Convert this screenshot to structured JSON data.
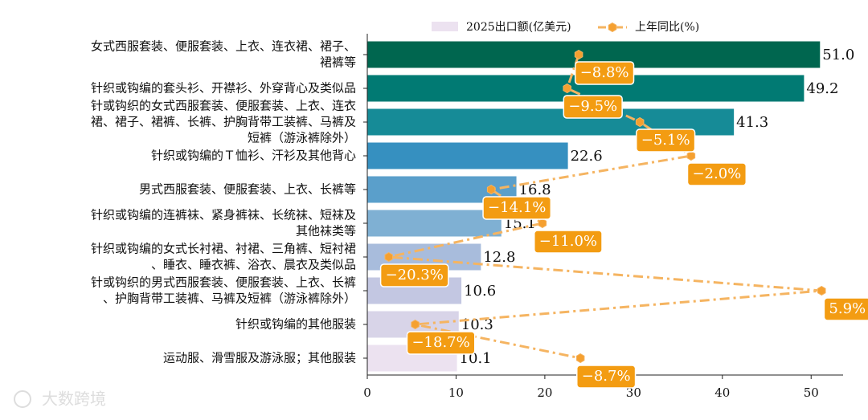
{
  "chart_data": {
    "type": "bar-line",
    "categories": [
      [
        "女式西服套装、便服套装、上衣、连衣裙、裙子、",
        "裙裤等"
      ],
      [
        "针织或钩编的套头衫、开襟衫、外穿背心及类似品"
      ],
      [
        "针或钩织的女式西服套装、便服套装、上衣、连衣",
        "裙、裙子、裙裤、长裤、护胸背带工装裤、马裤及",
        "短裤（游泳裤除外）"
      ],
      [
        "针织或钩编的Ｔ恤衫、汗衫及其他背心"
      ],
      [
        "男式西服套装、便服套装、上衣、长裤等"
      ],
      [
        "针织或钩编的连裤袜、紧身裤袜、长统袜、短袜及",
        "其他袜类等"
      ],
      [
        "针织或钩编的女式长衬裙、衬裙、三角裤、短衬裙",
        "、睡衣、睡衣裤、浴衣、晨衣及类似品"
      ],
      [
        "针或钩织的男式西服套装、便服套装、上衣、长裤",
        "、护胸背带工装裤、马裤及短裤（游泳裤除外）"
      ],
      [
        "针织或钩编的其他服装"
      ],
      [
        "运动服、滑雪服及游泳服；其他服装"
      ]
    ],
    "series": [
      {
        "name": "2025出口额(亿美元)",
        "colors": [
          "#00664f",
          "#017a73",
          "#168b97",
          "#3690c0",
          "#5a9fcb",
          "#7fb0d3",
          "#a8bcdc",
          "#c3c7e2",
          "#d8d4e8",
          "#ece2f0"
        ],
        "values": [
          51.0,
          49.2,
          41.3,
          22.6,
          16.8,
          15.1,
          12.8,
          10.6,
          10.3,
          10.1
        ],
        "value_labels": [
          "51.0",
          "49.2",
          "41.3",
          "22.6",
          "16.8",
          "15.1",
          "12.8",
          "10.6",
          "10.3",
          "10.1"
        ]
      },
      {
        "name": "上年同比(%)",
        "color": "#f5b461",
        "marker_color": "#f5a030",
        "label_color": "#f39c12",
        "axis": "x2",
        "values": [
          -8.8,
          -9.5,
          -5.1,
          -2.0,
          -14.1,
          -11.0,
          -20.3,
          5.9,
          -18.7,
          -8.7
        ],
        "value_labels": [
          "−8.8%",
          "−9.5%",
          "−5.1%",
          "−2.0%",
          "−14.1%",
          "−11.0%",
          "−20.3%",
          "5.9%",
          "−18.7%",
          "−8.7%"
        ]
      }
    ],
    "xlim": [
      0,
      53.6
    ],
    "xticks": [
      0,
      10,
      20,
      30,
      40,
      50
    ],
    "x2lim": [
      -21.6,
      7.2
    ],
    "watermark": "大数跨境"
  }
}
